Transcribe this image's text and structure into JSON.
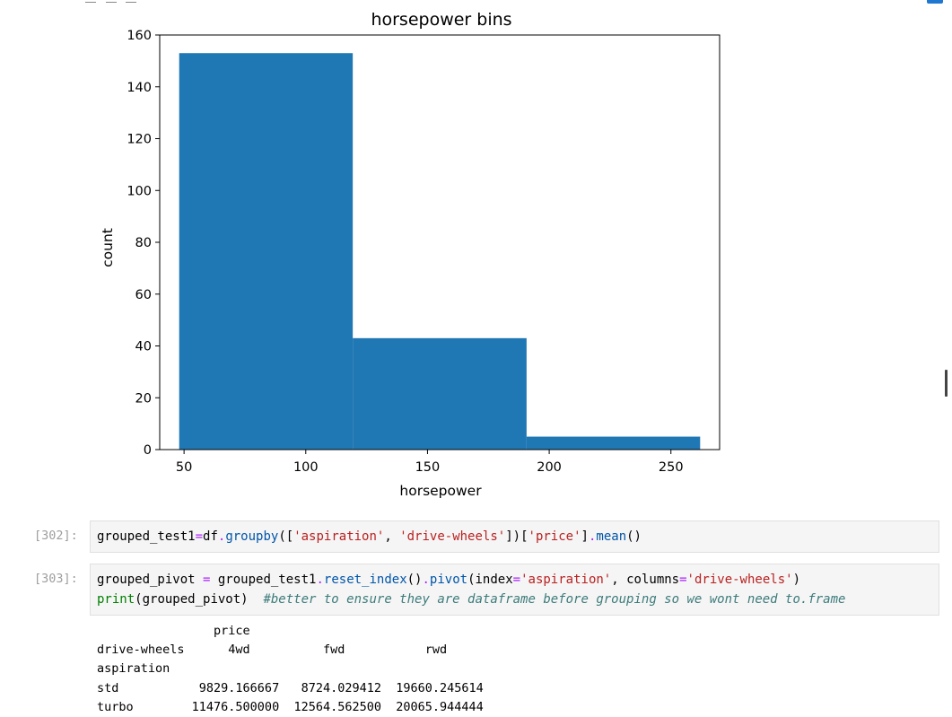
{
  "chart_data": {
    "type": "bar",
    "title": "horsepower bins",
    "xlabel": "horsepower",
    "ylabel": "count",
    "bins": [
      {
        "x0": 48,
        "x1": 119.3,
        "value": 153
      },
      {
        "x0": 119.3,
        "x1": 190.7,
        "value": 43
      },
      {
        "x0": 190.7,
        "x1": 262,
        "value": 5
      }
    ],
    "xlim": [
      40,
      270
    ],
    "ylim": [
      0,
      160
    ],
    "xticks": [
      50,
      100,
      150,
      200,
      250
    ],
    "yticks": [
      0,
      20,
      40,
      60,
      80,
      100,
      120,
      140,
      160
    ],
    "bar_color": "#1f77b4",
    "grid": false,
    "legend": "none"
  },
  "cells": [
    {
      "prompt": "[302]:",
      "code_lines": [
        [
          {
            "t": "grouped_test1",
            "c": "kw"
          },
          {
            "t": "=",
            "c": "op"
          },
          {
            "t": "df",
            "c": "kw"
          },
          {
            "t": ".",
            "c": "op"
          },
          {
            "t": "groupby",
            "c": "fn"
          },
          {
            "t": "([",
            "c": "kw"
          },
          {
            "t": "'aspiration'",
            "c": "str"
          },
          {
            "t": ", ",
            "c": "kw"
          },
          {
            "t": "'drive-wheels'",
            "c": "str"
          },
          {
            "t": "])[",
            "c": "kw"
          },
          {
            "t": "'price'",
            "c": "str"
          },
          {
            "t": "]",
            "c": "kw"
          },
          {
            "t": ".",
            "c": "op"
          },
          {
            "t": "mean",
            "c": "fn"
          },
          {
            "t": "()",
            "c": "kw"
          }
        ]
      ]
    },
    {
      "prompt": "[303]:",
      "code_lines": [
        [
          {
            "t": "grouped_pivot ",
            "c": "kw"
          },
          {
            "t": "=",
            "c": "op"
          },
          {
            "t": " grouped_test1",
            "c": "kw"
          },
          {
            "t": ".",
            "c": "op"
          },
          {
            "t": "reset_index",
            "c": "fn"
          },
          {
            "t": "()",
            "c": "kw"
          },
          {
            "t": ".",
            "c": "op"
          },
          {
            "t": "pivot",
            "c": "fn"
          },
          {
            "t": "(index",
            "c": "kw"
          },
          {
            "t": "=",
            "c": "op"
          },
          {
            "t": "'aspiration'",
            "c": "str"
          },
          {
            "t": ", columns",
            "c": "kw"
          },
          {
            "t": "=",
            "c": "op"
          },
          {
            "t": "'drive-wheels'",
            "c": "str"
          },
          {
            "t": ")",
            "c": "kw"
          }
        ],
        [
          {
            "t": "print",
            "c": "builtin"
          },
          {
            "t": "(grouped_pivot)  ",
            "c": "kw"
          },
          {
            "t": "#better to ensure they are dataframe before grouping so we wont need to.frame",
            "c": "cm"
          }
        ]
      ],
      "output": "                price\ndrive-wheels      4wd          fwd           rwd\naspiration\nstd           9829.166667   8724.029412  19660.245614\nturbo        11476.500000  12564.562500  20065.944444"
    }
  ]
}
